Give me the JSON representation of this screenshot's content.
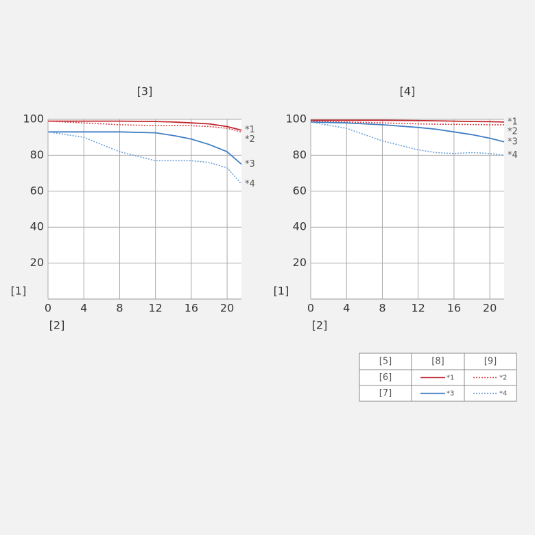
{
  "chart_data": [
    {
      "type": "line",
      "title": "[3]",
      "x_label": "[2]",
      "y_label": "[1]",
      "x": [
        0,
        4,
        8,
        12,
        14,
        16,
        18,
        20,
        21.6
      ],
      "xlim": [
        0,
        21.6
      ],
      "xticks": [
        0,
        4,
        8,
        12,
        16,
        20
      ],
      "ylim": [
        0,
        100
      ],
      "yticks": [
        20,
        40,
        60,
        80,
        100
      ],
      "grid": true,
      "series": [
        {
          "name": "*1",
          "color": "#c0272d",
          "style": "solid",
          "values": [
            99,
            99,
            99,
            98.8,
            98.5,
            98,
            97.5,
            96,
            94
          ]
        },
        {
          "name": "*2",
          "color": "#d9434a",
          "style": "dotted",
          "values": [
            99,
            98,
            97,
            96.5,
            96.5,
            96.5,
            96,
            95,
            93
          ]
        },
        {
          "name": "*3",
          "color": "#3f7fc4",
          "style": "solid",
          "values": [
            93,
            93,
            93,
            92.5,
            91,
            89,
            86,
            82,
            75
          ]
        },
        {
          "name": "*4",
          "color": "#6a9fd8",
          "style": "dotted",
          "values": [
            93,
            90,
            82,
            77,
            77,
            77,
            76,
            73,
            64
          ]
        }
      ]
    },
    {
      "type": "line",
      "title": "[4]",
      "x_label": "[2]",
      "y_label": "[1]",
      "x": [
        0,
        4,
        8,
        12,
        14,
        16,
        18,
        20,
        21.6
      ],
      "xlim": [
        0,
        21.6
      ],
      "xticks": [
        0,
        4,
        8,
        12,
        16,
        20
      ],
      "ylim": [
        0,
        100
      ],
      "yticks": [
        20,
        40,
        60,
        80,
        100
      ],
      "grid": true,
      "series": [
        {
          "name": "*1",
          "color": "#c0272d",
          "style": "solid",
          "values": [
            99.5,
            99.5,
            99.5,
            99.3,
            99.2,
            99,
            98.8,
            98.7,
            98.5
          ]
        },
        {
          "name": "*2",
          "color": "#d9434a",
          "style": "dotted",
          "values": [
            99,
            98.5,
            98,
            97.5,
            97.3,
            97.2,
            97.1,
            97,
            97
          ]
        },
        {
          "name": "*3",
          "color": "#3f7fc4",
          "style": "solid",
          "values": [
            98.5,
            98,
            97,
            95.5,
            94.5,
            93,
            91.5,
            89.5,
            87.5
          ]
        },
        {
          "name": "*4",
          "color": "#6a9fd8",
          "style": "dotted",
          "values": [
            98.5,
            95,
            88,
            83,
            81.5,
            81,
            81.5,
            81,
            80
          ]
        }
      ]
    }
  ],
  "legend_table": {
    "header": [
      "[5]",
      "[8]",
      "[9]"
    ],
    "rows": [
      "[6]",
      "[7]"
    ]
  }
}
